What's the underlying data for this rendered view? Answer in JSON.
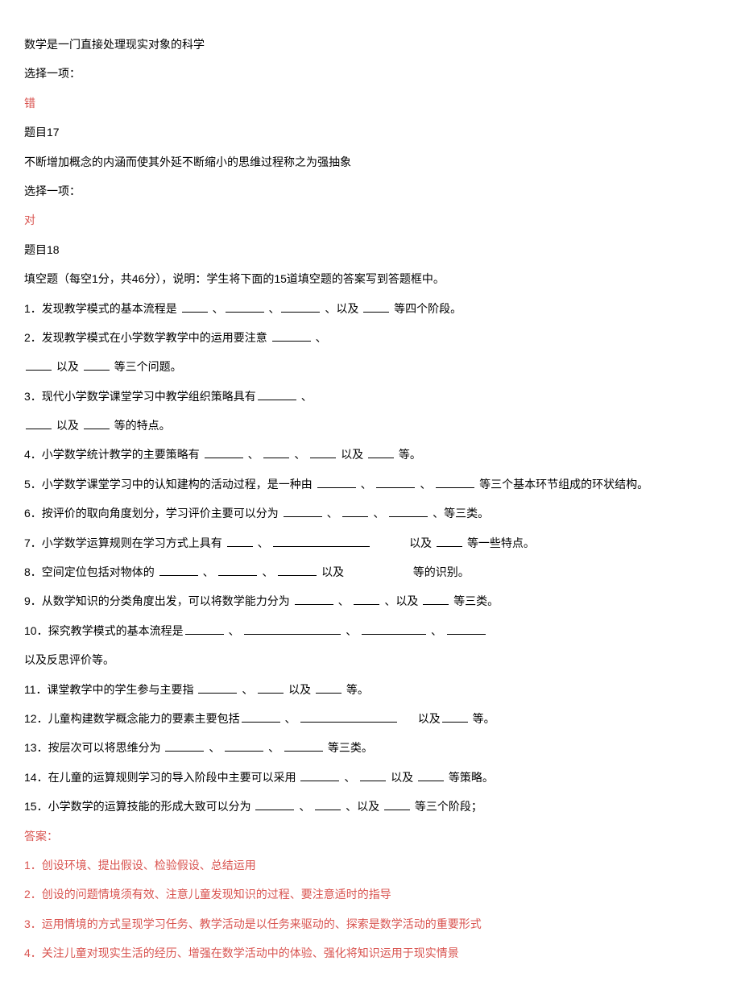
{
  "p1": "数学是一门直接处理现实对象的科学",
  "p2": "选择一项：",
  "p3": "错",
  "q17title": "题目17",
  "q17text": "不断增加概念的内涵而使其外延不断缩小的思维过程称之为强抽象",
  "p4": "选择一项：",
  "p5": "对",
  "q18title": "题目18",
  "q18intro": "填空题（每空1分，共46分），说明：学生将下面的15道填空题的答案写到答题框中。",
  "q1a": "1．发现教学模式的基本流程是 ",
  "q1b": "、",
  "q1c": "、",
  "q1d": "、以及  ",
  "q1e": "等四个阶段。",
  "q2a": "2．发现教学模式在小学数学教学中的运用要注意 ",
  "q2b": "、",
  "q2c": "以及 ",
  "q2d": "等三个问题。",
  "q3a": "3．现代小学数学课堂学习中教学组织策略具有",
  "q3b": "、",
  "q3c": "以及 ",
  "q3d": "等的特点。",
  "q4a": "4．小学数学统计教学的主要策略有 ",
  "q4s": "、 ",
  "q4m": "以及 ",
  "q4e": "等。",
  "q5a": "5．小学数学课堂学习中的认知建构的活动过程，是一种由  ",
  "q5e": "等三个基本环节组成的环状结构。",
  "q6a": "6．按评价的取向角度划分，学习评价主要可以分为 ",
  "q6e": "、等三类。",
  "q7a": "7．小学数学运算规则在学习方式上具有  ",
  "q7m": " 以及  ",
  "q7e": "等一些特点。",
  "q8a": "8．空间定位包括对物体的  ",
  "q8m": "以及",
  "q8e": " 等的识别。",
  "q9a": "9．从数学知识的分类角度出发，可以将数学能力分为 ",
  "q9m": "、以及 ",
  "q9e": "等三类。",
  "q10a": "10．探究教学模式的基本流程是",
  "q10b": "以及反思评价等。",
  "q11a": "11．课堂教学中的学生参与主要指 ",
  "q11m": "以及  ",
  "q11e": " 等。",
  "q12a": "12．儿童构建数学概念能力的要素主要包括",
  "q12m": " 以及",
  "q12e": "等。",
  "q13a": "13．按层次可以将思维分为  ",
  "q13e": "等三类。",
  "q14a": "14．在儿童的运算规则学习的导入阶段中主要可以采用 ",
  "q14m": "以及  ",
  "q14e": "等策略。",
  "q15a": "15．小学数学的运算技能的形成大致可以分为 ",
  "q15m": "、以及  ",
  "q15e": " 等三个阶段；",
  "ansTitle": "答案：",
  "ans1": "1．创设环境、提出假设、检验假设、总结运用",
  "ans2": "2．创设的问题情境须有效、注意儿童发现知识的过程、要注意适时的指导",
  "ans3": "3．运用情境的方式呈现学习任务、教学活动是以任务来驱动的、探索是数学活动的重要形式",
  "ans4": "4．关注儿童对现实生活的经历、增强在数学活动中的体验、强化将知识运用于现实情景"
}
